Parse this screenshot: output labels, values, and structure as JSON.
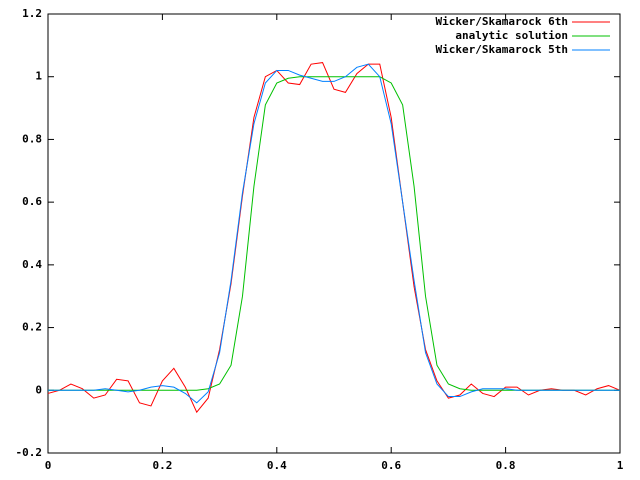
{
  "chart_data": {
    "type": "line",
    "x": [
      0,
      0.02,
      0.04,
      0.06,
      0.08,
      0.1,
      0.12,
      0.14,
      0.16,
      0.18,
      0.2,
      0.22,
      0.24,
      0.26,
      0.28,
      0.3,
      0.32,
      0.34,
      0.36,
      0.38,
      0.4,
      0.42,
      0.44,
      0.46,
      0.48,
      0.5,
      0.52,
      0.54,
      0.56,
      0.58,
      0.6,
      0.62,
      0.64,
      0.66,
      0.68,
      0.7,
      0.72,
      0.74,
      0.76,
      0.78,
      0.8,
      0.82,
      0.84,
      0.86,
      0.88,
      0.9,
      0.92,
      0.94,
      0.96,
      0.98,
      1
    ],
    "series": [
      {
        "name": "Wicker/Skamarock 6th",
        "color": "#ff0000",
        "values": [
          -0.01,
          0,
          0.02,
          0.005,
          -0.025,
          -0.015,
          0.035,
          0.03,
          -0.04,
          -0.05,
          0.03,
          0.07,
          0.01,
          -0.07,
          -0.025,
          0.13,
          0.34,
          0.62,
          0.87,
          1.0,
          1.02,
          0.98,
          0.975,
          1.04,
          1.045,
          0.96,
          0.95,
          1.01,
          1.04,
          1.04,
          0.87,
          0.6,
          0.33,
          0.13,
          0.03,
          -0.025,
          -0.015,
          0.02,
          -0.01,
          -0.02,
          0.01,
          0.01,
          -0.015,
          0,
          0.005,
          0,
          0,
          -0.015,
          0.005,
          0.015,
          0
        ]
      },
      {
        "name": "analytic solution",
        "color": "#00c000",
        "values": [
          0,
          0,
          0,
          0,
          0,
          0,
          0,
          0,
          0,
          0,
          0,
          0,
          0,
          0,
          0.005,
          0.02,
          0.08,
          0.3,
          0.65,
          0.91,
          0.98,
          0.995,
          1,
          1,
          1,
          1,
          1,
          1,
          1,
          1,
          0.98,
          0.91,
          0.65,
          0.3,
          0.08,
          0.02,
          0.005,
          0,
          0,
          0,
          0,
          0,
          0,
          0,
          0,
          0,
          0,
          0,
          0,
          0,
          0
        ]
      },
      {
        "name": "Wicker/Skamarock 5th",
        "color": "#0080ff",
        "values": [
          0,
          0,
          0,
          0,
          0,
          0.005,
          0,
          -0.005,
          0,
          0.01,
          0.015,
          0.01,
          -0.01,
          -0.04,
          -0.005,
          0.12,
          0.35,
          0.63,
          0.85,
          0.98,
          1.02,
          1.02,
          1.005,
          0.995,
          0.985,
          0.985,
          1.0,
          1.03,
          1.04,
          1.0,
          0.85,
          0.6,
          0.35,
          0.12,
          0.02,
          -0.02,
          -0.02,
          -0.005,
          0.005,
          0.005,
          0.005,
          0,
          0,
          0,
          0,
          0,
          0,
          0,
          0,
          0,
          0
        ]
      }
    ],
    "xlim": [
      0,
      1
    ],
    "xticks": [
      0,
      0.2,
      0.4,
      0.6,
      0.8,
      1
    ],
    "ylim": [
      -0.2,
      1.2
    ],
    "yticks": [
      -0.2,
      0,
      0.2,
      0.4,
      0.6,
      0.8,
      1,
      1.2
    ],
    "legend": "top-right",
    "grid": false
  }
}
